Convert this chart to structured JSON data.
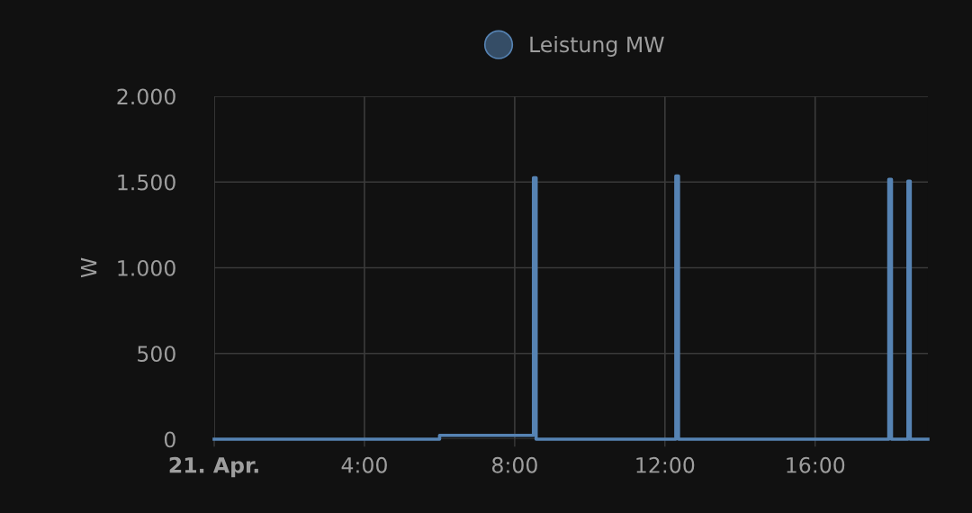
{
  "chart_data": {
    "type": "step",
    "ylabel": "W",
    "legend": "top",
    "grid": true,
    "marker": "none",
    "line_style": "solid",
    "xlim": [
      0,
      19
    ],
    "xticks": [
      {
        "value": 0,
        "label": "21. Apr."
      },
      {
        "value": 4,
        "label": "4:00"
      },
      {
        "value": 8,
        "label": "8:00"
      },
      {
        "value": 12,
        "label": "12:00"
      },
      {
        "value": 16,
        "label": "16:00"
      }
    ],
    "ylim": [
      0,
      2000
    ],
    "yticks": [
      0,
      {
        "value": 500,
        "label": "500"
      },
      {
        "value": 1000,
        "label": "1.000"
      },
      {
        "value": 1500,
        "label": "1.500"
      },
      {
        "value": 2000,
        "label": "2.000"
      }
    ],
    "series": [
      {
        "name": "Leistung MW",
        "color": "#5683b3",
        "x": [
          0,
          6.0,
          8.5,
          8.57,
          12.29,
          12.36,
          17.96,
          18.03,
          18.47,
          18.53,
          19.0
        ],
        "values": [
          0,
          22,
          1525,
          0,
          1535,
          0,
          1515,
          0,
          1505,
          0,
          0
        ]
      }
    ]
  }
}
